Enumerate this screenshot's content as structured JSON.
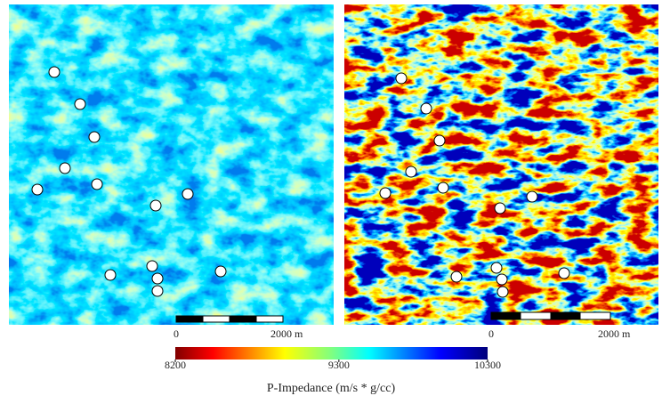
{
  "panels": [
    {
      "scale_bar": {
        "start_label": "0",
        "end_label": "2000 m"
      }
    },
    {
      "scale_bar": {
        "start_label": "0",
        "end_label": "2000 m"
      }
    }
  ],
  "colorbar": {
    "range": [
      8200,
      10300
    ],
    "ticks": [
      8200,
      9300,
      10300
    ],
    "label": "P-Impedance  (m/s * g/cc)"
  }
}
